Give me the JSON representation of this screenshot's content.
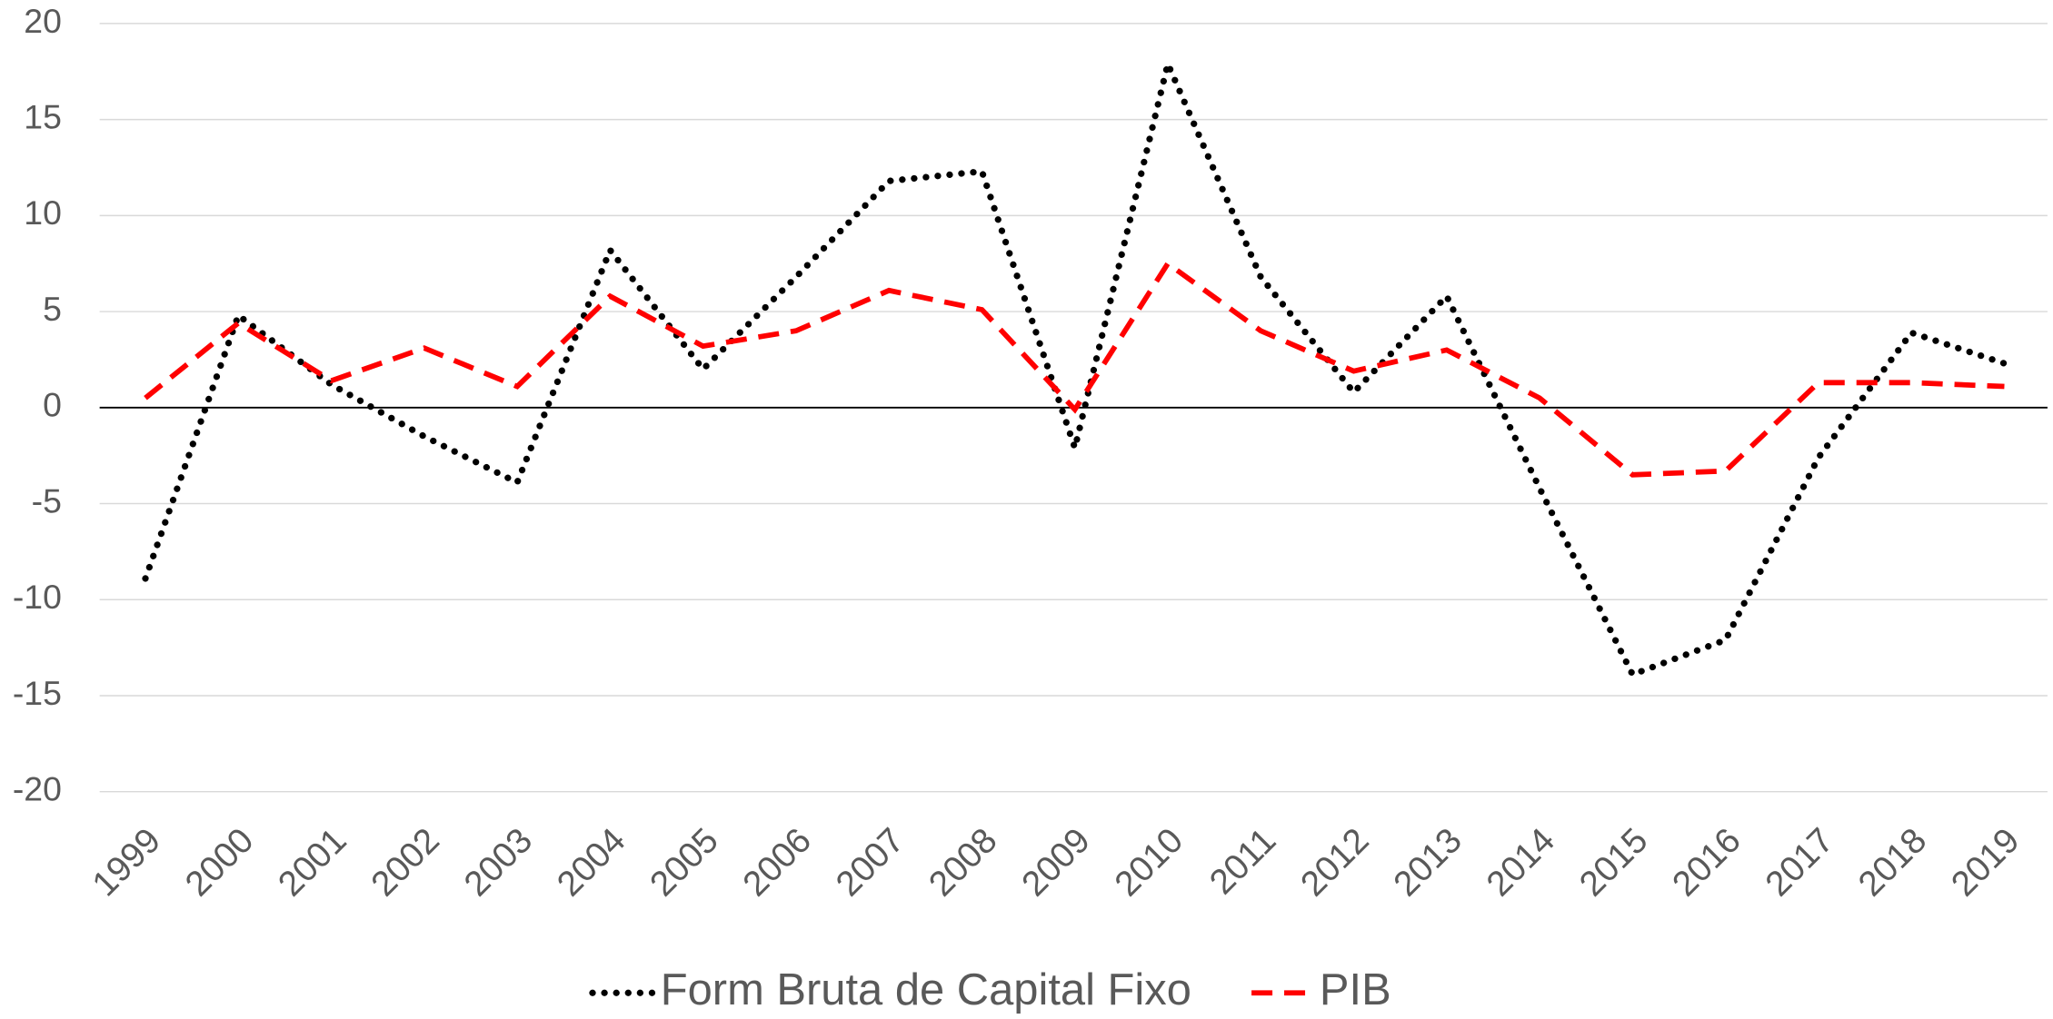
{
  "chart_data": {
    "type": "line",
    "x": [
      "1999",
      "2000",
      "2001",
      "2002",
      "2003",
      "2004",
      "2005",
      "2006",
      "2007",
      "2008",
      "2009",
      "2010",
      "2011",
      "2012",
      "2013",
      "2014",
      "2015",
      "2016",
      "2017",
      "2018",
      "2019"
    ],
    "series": [
      {
        "name": "Form Bruta de Capital Fixo",
        "color": "#000000",
        "style": "dotted",
        "values": [
          -8.9,
          4.8,
          1.2,
          -1.5,
          -3.9,
          8.2,
          2.0,
          6.8,
          11.8,
          12.3,
          -2.1,
          17.9,
          6.8,
          0.8,
          5.8,
          -4.2,
          -13.9,
          -12.1,
          -2.6,
          3.9,
          2.3
        ]
      },
      {
        "name": "PIB",
        "color": "#ff0000",
        "style": "dashed",
        "values": [
          0.5,
          4.4,
          1.4,
          3.1,
          1.1,
          5.8,
          3.2,
          4.0,
          6.1,
          5.1,
          -0.1,
          7.5,
          4.0,
          1.9,
          3.0,
          0.5,
          -3.5,
          -3.3,
          1.3,
          1.3,
          1.1
        ]
      }
    ],
    "ylim": [
      -20,
      20
    ],
    "yticks": [
      -20,
      -15,
      -10,
      -5,
      0,
      5,
      10,
      15,
      20
    ],
    "grid": true,
    "legend": "bottom"
  }
}
